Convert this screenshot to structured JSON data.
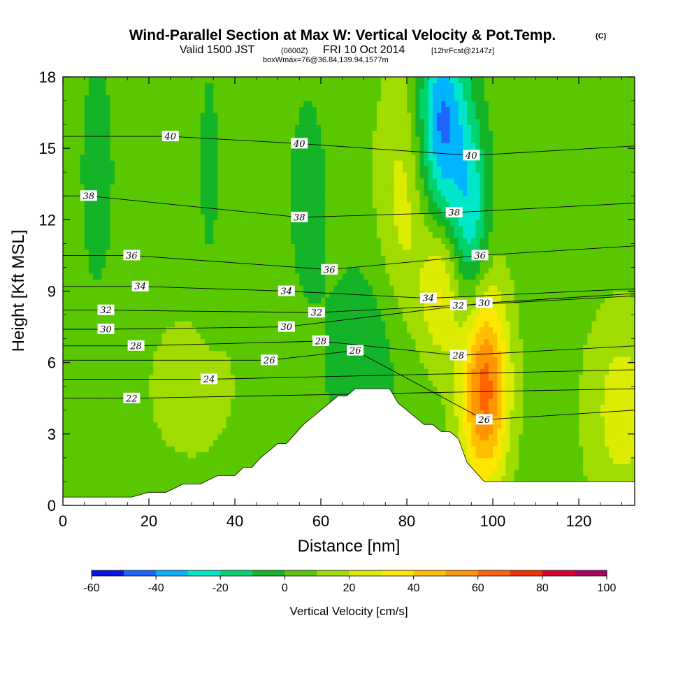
{
  "title": {
    "main": "Wind-Parallel Section at Max W: Vertical Velocity & Pot.Temp.",
    "main_unit": "(C)",
    "valid_a": "Valid 1500 JST",
    "valid_b": "(0600Z)",
    "valid_c": "FRI 10 Oct 2014",
    "valid_d": "[12hrFcst@2147z]",
    "boxwmax": "boxWmax=76@36.84,139.94,1577m"
  },
  "colors": {
    "levels": [
      -60,
      -50,
      -40,
      -30,
      -20,
      -10,
      0,
      10,
      20,
      30,
      40,
      50,
      60,
      70,
      80,
      90,
      100
    ],
    "fills": [
      "#0a14e6",
      "#1e64ff",
      "#00b4ff",
      "#00e6c8",
      "#00d26e",
      "#14b428",
      "#5ac800",
      "#a0dc00",
      "#dcec00",
      "#ffe600",
      "#ffbe00",
      "#ff9600",
      "#ff6400",
      "#f03200",
      "#dc0032",
      "#aa0064",
      "#6e0096"
    ],
    "terrain": "#ffffff",
    "contour": "#000000"
  },
  "chart_data": {
    "type": "heatmap",
    "title": "Wind-Parallel Section at Max W: Vertical Velocity & Pot.Temp. (C)",
    "xlabel": "Distance [nm]",
    "ylabel": "Height [Kft MSL]",
    "xlim": [
      0,
      133
    ],
    "ylim": [
      0,
      18
    ],
    "x_ticks": [
      "0",
      "20",
      "40",
      "60",
      "80",
      "100",
      "120"
    ],
    "y_ticks": [
      "0",
      "3",
      "6",
      "9",
      "12",
      "15",
      "18"
    ],
    "colorbar": {
      "label": "Vertical Velocity [cm/s]",
      "tick_labels": [
        "-60",
        "-40",
        "-20",
        "0",
        "20",
        "40",
        "60",
        "80",
        "100"
      ],
      "levels": [
        -60,
        -50,
        -40,
        -30,
        -20,
        -10,
        0,
        10,
        20,
        30,
        40,
        50,
        60,
        70,
        80,
        90,
        100
      ]
    },
    "terrain": [
      [
        0,
        0.35
      ],
      [
        4,
        0.35
      ],
      [
        8,
        0.35
      ],
      [
        12,
        0.35
      ],
      [
        16,
        0.35
      ],
      [
        20,
        0.55
      ],
      [
        24,
        0.55
      ],
      [
        28,
        0.9
      ],
      [
        32,
        0.9
      ],
      [
        36,
        1.25
      ],
      [
        40,
        1.25
      ],
      [
        42,
        1.6
      ],
      [
        44,
        1.6
      ],
      [
        46,
        2.0
      ],
      [
        48,
        2.3
      ],
      [
        50,
        2.6
      ],
      [
        52,
        2.6
      ],
      [
        54,
        3.0
      ],
      [
        56,
        3.4
      ],
      [
        58,
        3.7
      ],
      [
        60,
        4.0
      ],
      [
        62,
        4.3
      ],
      [
        64,
        4.6
      ],
      [
        66,
        4.6
      ],
      [
        68,
        4.9
      ],
      [
        70,
        4.9
      ],
      [
        72,
        4.9
      ],
      [
        74,
        4.9
      ],
      [
        76,
        4.9
      ],
      [
        78,
        4.3
      ],
      [
        80,
        4.0
      ],
      [
        82,
        3.7
      ],
      [
        84,
        3.4
      ],
      [
        86,
        3.4
      ],
      [
        88,
        3.1
      ],
      [
        90,
        3.1
      ],
      [
        92,
        2.8
      ],
      [
        94,
        1.8
      ],
      [
        96,
        1.4
      ],
      [
        98,
        1.0
      ],
      [
        100,
        1.0
      ],
      [
        104,
        1.0
      ],
      [
        110,
        1.0
      ],
      [
        120,
        1.0
      ],
      [
        133,
        1.0
      ]
    ],
    "w_field": {
      "background": 5,
      "blobs": [
        {
          "x": 8,
          "y": 14,
          "sx": 3,
          "sy": 4,
          "amp": -10
        },
        {
          "x": 34,
          "y": 14,
          "sx": 2,
          "sy": 4,
          "amp": -8
        },
        {
          "x": 57,
          "y": 13,
          "sx": 3,
          "sy": 3,
          "amp": -12
        },
        {
          "x": 80,
          "y": 13,
          "sx": 5,
          "sy": 4,
          "amp": 20
        },
        {
          "x": 88,
          "y": 16,
          "sx": 4,
          "sy": 3,
          "amp": -50
        },
        {
          "x": 95,
          "y": 12,
          "sx": 3,
          "sy": 3,
          "amp": -30
        },
        {
          "x": 88,
          "y": 9,
          "sx": 3,
          "sy": 2,
          "amp": 25
        },
        {
          "x": 98,
          "y": 5,
          "sx": 4,
          "sy": 3,
          "amp": 60
        },
        {
          "x": 130,
          "y": 4,
          "sx": 6,
          "sy": 3,
          "amp": 20
        },
        {
          "x": 30,
          "y": 5,
          "sx": 10,
          "sy": 3,
          "amp": 8
        },
        {
          "x": 70,
          "y": 6,
          "sx": 6,
          "sy": 3,
          "amp": -15
        }
      ]
    },
    "theta_contours": [
      {
        "label": "22",
        "x": 16,
        "y": 4.5
      },
      {
        "label": "24",
        "x": 34,
        "y": 5.3
      },
      {
        "label": "26",
        "x": 48,
        "y": 6.1
      },
      {
        "label": "26",
        "x": 68,
        "y": 6.5
      },
      {
        "label": "26",
        "x": 98,
        "y": 3.6
      },
      {
        "label": "28",
        "x": 17,
        "y": 6.7
      },
      {
        "label": "28",
        "x": 60,
        "y": 6.9
      },
      {
        "label": "28",
        "x": 92,
        "y": 6.3
      },
      {
        "label": "30",
        "x": 10,
        "y": 7.4
      },
      {
        "label": "30",
        "x": 52,
        "y": 7.5
      },
      {
        "label": "30",
        "x": 98,
        "y": 8.5
      },
      {
        "label": "32",
        "x": 10,
        "y": 8.2
      },
      {
        "label": "32",
        "x": 59,
        "y": 8.1
      },
      {
        "label": "32",
        "x": 92,
        "y": 8.4
      },
      {
        "label": "34",
        "x": 18,
        "y": 9.2
      },
      {
        "label": "34",
        "x": 52,
        "y": 9.0
      },
      {
        "label": "34",
        "x": 85,
        "y": 8.7
      },
      {
        "label": "36",
        "x": 16,
        "y": 10.5
      },
      {
        "label": "36",
        "x": 62,
        "y": 9.9
      },
      {
        "label": "36",
        "x": 97,
        "y": 10.5
      },
      {
        "label": "38",
        "x": 6,
        "y": 13.0
      },
      {
        "label": "38",
        "x": 55,
        "y": 12.1
      },
      {
        "label": "38",
        "x": 91,
        "y": 12.3
      },
      {
        "label": "40",
        "x": 25,
        "y": 15.5
      },
      {
        "label": "40",
        "x": 55,
        "y": 15.2
      },
      {
        "label": "40",
        "x": 95,
        "y": 14.7
      }
    ]
  }
}
